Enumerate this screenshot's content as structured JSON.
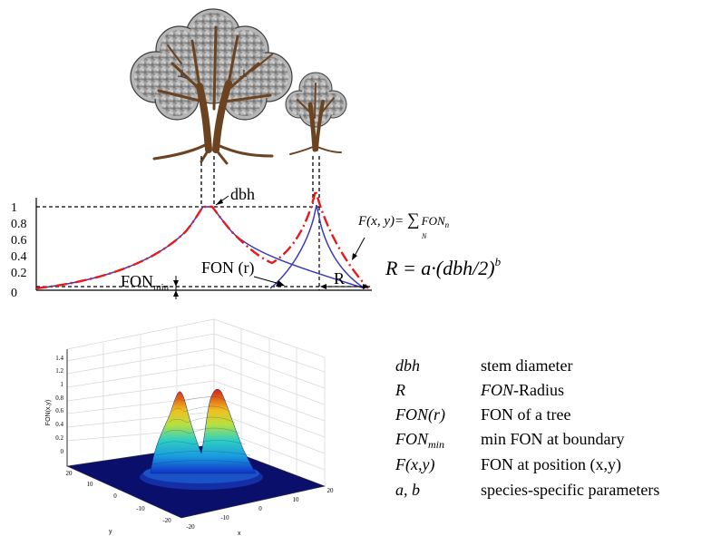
{
  "profile": {
    "y_ticks": [
      "1",
      "0.8",
      "0.6",
      "0.4",
      "0.2",
      "0"
    ],
    "label_dbh": "dbh",
    "label_fon_r": "FON (r)",
    "label_fon_min_main": "FON",
    "label_fon_min_sub": "min",
    "label_R": "R",
    "formula_F": {
      "lhs": "F(x, y)=",
      "sum": "∑",
      "sum_index": "N",
      "term": "FON",
      "term_sub": "n"
    },
    "formula_R": {
      "text": "R = a·(dbh/2)",
      "exponent": "b"
    },
    "colors": {
      "red": "#e41a1c",
      "blue": "#3a3ab8"
    }
  },
  "surface": {
    "z_ticks": [
      "1.4",
      "1.2",
      "1",
      "0.8",
      "0.6",
      "0.4",
      "0.2",
      "0"
    ],
    "z_label": "FON(x,y)",
    "y_ticks": [
      "20",
      "10",
      "0",
      "-10",
      "-20"
    ],
    "x_ticks": [
      "-20",
      "-10",
      "0",
      "10",
      "20"
    ],
    "y_axis_label": "y",
    "x_axis_label": "x"
  },
  "legend": [
    {
      "term": "dbh",
      "desc": "stem diameter"
    },
    {
      "term": "R",
      "desc_italic": "FON",
      "desc": "-Radius"
    },
    {
      "term": "FON(r)",
      "desc": "FON of a tree"
    },
    {
      "term": "FON",
      "term_sub": "min",
      "desc": "min FON at boundary"
    },
    {
      "term": "F(x,y)",
      "desc": "FON at position (x,y)"
    },
    {
      "term": "a, b",
      "desc": "species-specific parameters"
    }
  ]
}
